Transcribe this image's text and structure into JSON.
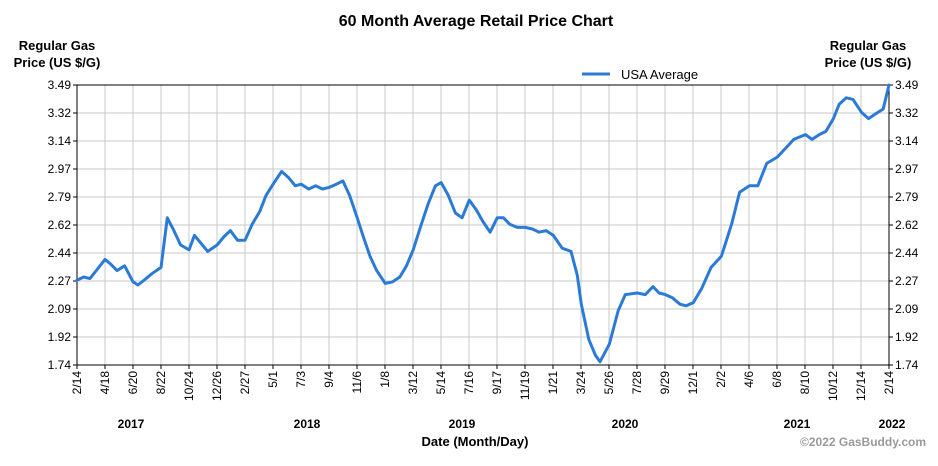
{
  "chart_data": {
    "type": "line",
    "title": "60 Month Average Retail Price Chart",
    "ylabel_left": [
      "Regular Gas",
      "Price (US $/G)"
    ],
    "ylabel_right": [
      "Regular Gas",
      "Price (US $/G)"
    ],
    "xlabel": "Date (Month/Day)",
    "credit": "©2022 GasBuddy.com",
    "legend_position": "top-right",
    "grid": true,
    "ylim": [
      1.74,
      3.49
    ],
    "yticks": [
      "3.49",
      "3.32",
      "3.14",
      "2.97",
      "2.79",
      "2.62",
      "2.44",
      "2.27",
      "2.09",
      "1.92",
      "1.74"
    ],
    "xlim": [
      "2017-02-14",
      "2022-02-14"
    ],
    "xtick_labels": [
      "2/14",
      "4/18",
      "6/20",
      "8/22",
      "10/24",
      "12/26",
      "2/27",
      "5/1",
      "7/3",
      "9/4",
      "11/6",
      "1/8",
      "3/12",
      "5/14",
      "7/16",
      "9/17",
      "11/19",
      "1/21",
      "3/24",
      "5/26",
      "7/28",
      "9/29",
      "12/1",
      "2/2",
      "4/6",
      "6/8",
      "8/10",
      "10/12",
      "12/14",
      "2/14"
    ],
    "year_labels": [
      "2017",
      "2018",
      "2019",
      "2020",
      "2021",
      "2022"
    ],
    "series": [
      {
        "name": "USA Average",
        "color": "#2b7bd6",
        "points": [
          [
            "2017-02-14",
            2.27
          ],
          [
            "2017-03-01",
            2.29
          ],
          [
            "2017-03-15",
            2.28
          ],
          [
            "2017-04-01",
            2.34
          ],
          [
            "2017-04-18",
            2.4
          ],
          [
            "2017-05-01",
            2.37
          ],
          [
            "2017-05-15",
            2.33
          ],
          [
            "2017-06-01",
            2.36
          ],
          [
            "2017-06-20",
            2.26
          ],
          [
            "2017-07-01",
            2.24
          ],
          [
            "2017-07-15",
            2.27
          ],
          [
            "2017-08-01",
            2.31
          ],
          [
            "2017-08-22",
            2.35
          ],
          [
            "2017-09-05",
            2.66
          ],
          [
            "2017-09-20",
            2.58
          ],
          [
            "2017-10-05",
            2.49
          ],
          [
            "2017-10-24",
            2.46
          ],
          [
            "2017-11-05",
            2.55
          ],
          [
            "2017-11-20",
            2.5
          ],
          [
            "2017-12-05",
            2.45
          ],
          [
            "2017-12-26",
            2.49
          ],
          [
            "2018-01-10",
            2.54
          ],
          [
            "2018-01-25",
            2.58
          ],
          [
            "2018-02-10",
            2.52
          ],
          [
            "2018-02-27",
            2.52
          ],
          [
            "2018-03-15",
            2.62
          ],
          [
            "2018-04-01",
            2.7
          ],
          [
            "2018-04-15",
            2.8
          ],
          [
            "2018-05-01",
            2.87
          ],
          [
            "2018-05-20",
            2.95
          ],
          [
            "2018-06-05",
            2.91
          ],
          [
            "2018-06-20",
            2.86
          ],
          [
            "2018-07-03",
            2.87
          ],
          [
            "2018-07-20",
            2.84
          ],
          [
            "2018-08-05",
            2.86
          ],
          [
            "2018-08-20",
            2.84
          ],
          [
            "2018-09-04",
            2.85
          ],
          [
            "2018-09-20",
            2.87
          ],
          [
            "2018-10-05",
            2.89
          ],
          [
            "2018-10-20",
            2.8
          ],
          [
            "2018-11-06",
            2.66
          ],
          [
            "2018-11-20",
            2.54
          ],
          [
            "2018-12-05",
            2.42
          ],
          [
            "2018-12-20",
            2.33
          ],
          [
            "2019-01-08",
            2.25
          ],
          [
            "2019-01-25",
            2.26
          ],
          [
            "2019-02-10",
            2.29
          ],
          [
            "2019-02-25",
            2.36
          ],
          [
            "2019-03-12",
            2.46
          ],
          [
            "2019-03-28",
            2.6
          ],
          [
            "2019-04-15",
            2.75
          ],
          [
            "2019-05-01",
            2.86
          ],
          [
            "2019-05-14",
            2.88
          ],
          [
            "2019-05-30",
            2.8
          ],
          [
            "2019-06-15",
            2.69
          ],
          [
            "2019-06-30",
            2.66
          ],
          [
            "2019-07-16",
            2.77
          ],
          [
            "2019-08-01",
            2.71
          ],
          [
            "2019-08-15",
            2.64
          ],
          [
            "2019-09-01",
            2.57
          ],
          [
            "2019-09-17",
            2.66
          ],
          [
            "2019-10-01",
            2.66
          ],
          [
            "2019-10-15",
            2.62
          ],
          [
            "2019-11-01",
            2.6
          ],
          [
            "2019-11-19",
            2.6
          ],
          [
            "2019-12-05",
            2.59
          ],
          [
            "2019-12-20",
            2.57
          ],
          [
            "2020-01-05",
            2.58
          ],
          [
            "2020-01-21",
            2.55
          ],
          [
            "2020-02-10",
            2.47
          ],
          [
            "2020-03-01",
            2.45
          ],
          [
            "2020-03-15",
            2.3
          ],
          [
            "2020-03-24",
            2.12
          ],
          [
            "2020-04-10",
            1.9
          ],
          [
            "2020-04-25",
            1.8
          ],
          [
            "2020-05-05",
            1.76
          ],
          [
            "2020-05-26",
            1.87
          ],
          [
            "2020-06-15",
            2.08
          ],
          [
            "2020-07-01",
            2.18
          ],
          [
            "2020-07-28",
            2.19
          ],
          [
            "2020-08-15",
            2.18
          ],
          [
            "2020-09-01",
            2.23
          ],
          [
            "2020-09-15",
            2.19
          ],
          [
            "2020-09-29",
            2.18
          ],
          [
            "2020-10-15",
            2.16
          ],
          [
            "2020-11-01",
            2.12
          ],
          [
            "2020-11-15",
            2.11
          ],
          [
            "2020-12-01",
            2.13
          ],
          [
            "2020-12-20",
            2.22
          ],
          [
            "2021-01-10",
            2.35
          ],
          [
            "2021-02-02",
            2.42
          ],
          [
            "2021-02-25",
            2.62
          ],
          [
            "2021-03-15",
            2.82
          ],
          [
            "2021-04-06",
            2.86
          ],
          [
            "2021-04-25",
            2.86
          ],
          [
            "2021-05-15",
            3.0
          ],
          [
            "2021-06-08",
            3.04
          ],
          [
            "2021-06-25",
            3.09
          ],
          [
            "2021-07-15",
            3.15
          ],
          [
            "2021-08-10",
            3.18
          ],
          [
            "2021-08-25",
            3.15
          ],
          [
            "2021-09-10",
            3.18
          ],
          [
            "2021-09-25",
            3.2
          ],
          [
            "2021-10-12",
            3.28
          ],
          [
            "2021-10-25",
            3.37
          ],
          [
            "2021-11-10",
            3.41
          ],
          [
            "2021-11-25",
            3.4
          ],
          [
            "2021-12-14",
            3.32
          ],
          [
            "2021-12-30",
            3.28
          ],
          [
            "2022-01-15",
            3.31
          ],
          [
            "2022-02-01",
            3.34
          ],
          [
            "2022-02-14",
            3.49
          ]
        ]
      }
    ]
  }
}
